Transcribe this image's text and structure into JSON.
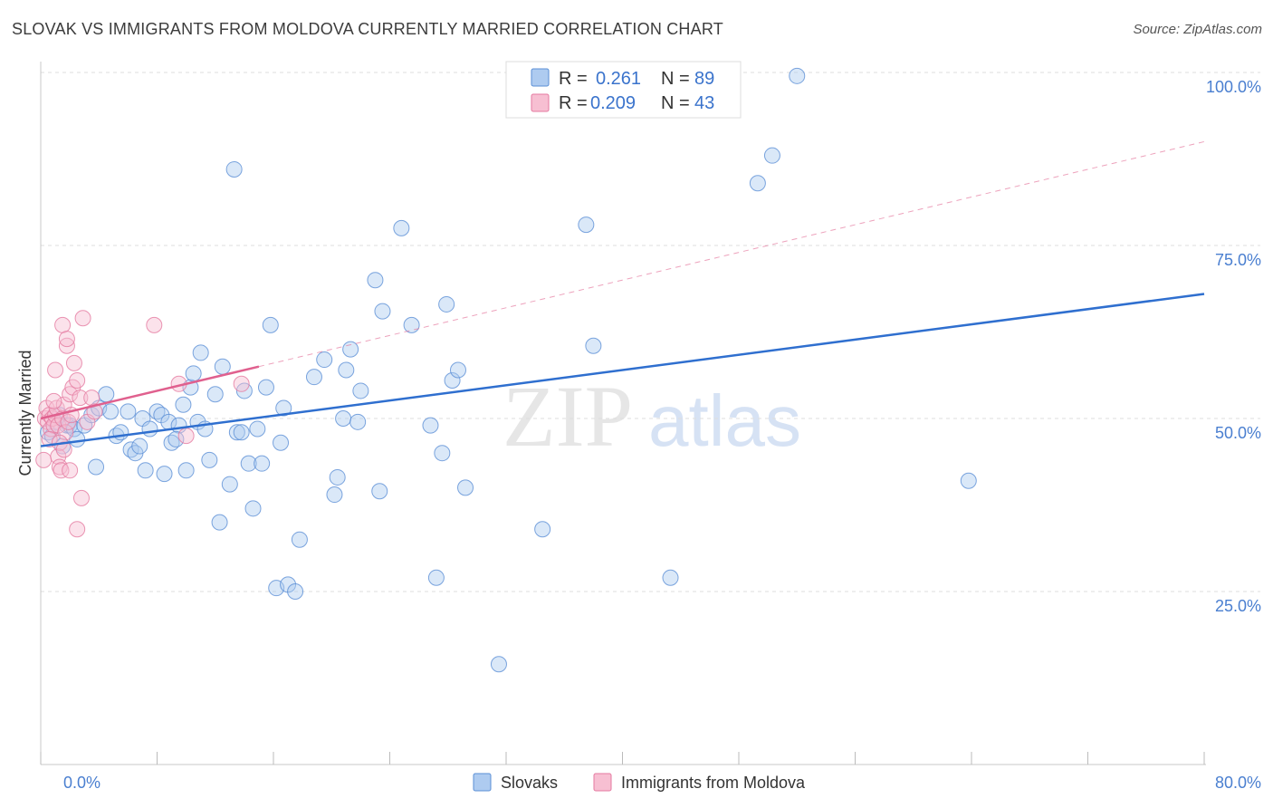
{
  "title": "SLOVAK VS IMMIGRANTS FROM MOLDOVA CURRENTLY MARRIED CORRELATION CHART",
  "source": "Source: ZipAtlas.com",
  "watermark": {
    "zip": "ZIP",
    "atlas": "atlas"
  },
  "colors": {
    "slovak": "#5b8fd6",
    "slovak_fill": "#aecbf0",
    "moldova": "#e57aa0",
    "moldova_fill": "#f7bfd2",
    "axis_text": "#4a7fd0"
  },
  "legend": {
    "rows": [
      {
        "r_label": "R =",
        "r_value": "0.261",
        "n_label": "N =",
        "n_value": "89"
      },
      {
        "r_label": "R =",
        "r_value": "0.209",
        "n_label": "N =",
        "n_value": "43"
      }
    ]
  },
  "bottom_legend": {
    "series1": "Slovaks",
    "series2": "Immigrants from Moldova"
  },
  "chart_data": {
    "type": "scatter",
    "title": "SLOVAK VS IMMIGRANTS FROM MOLDOVA CURRENTLY MARRIED CORRELATION CHART",
    "xlabel": "",
    "ylabel": "Currently Married",
    "xlim": [
      0,
      80
    ],
    "ylim": [
      0,
      100
    ],
    "x_tick_labels": [
      "0.0%",
      "80.0%"
    ],
    "y_tick_values": [
      25,
      50,
      75,
      100
    ],
    "y_tick_labels": [
      "25.0%",
      "50.0%",
      "75.0%",
      "100.0%"
    ],
    "grid": true,
    "legend_position": "top-center",
    "series": [
      {
        "name": "Slovaks",
        "r": 0.261,
        "n": 89,
        "trend": {
          "x": [
            0,
            80
          ],
          "y": [
            46.0,
            68.0
          ]
        },
        "points": [
          [
            0.5,
            48.0
          ],
          [
            0.8,
            47.5
          ],
          [
            1.0,
            49.5
          ],
          [
            1.3,
            50.5
          ],
          [
            1.5,
            46.0
          ],
          [
            1.8,
            49.0
          ],
          [
            2.0,
            49.0
          ],
          [
            2.3,
            48.5
          ],
          [
            2.5,
            47.0
          ],
          [
            3.0,
            49.0
          ],
          [
            3.5,
            50.5
          ],
          [
            4.0,
            51.5
          ],
          [
            4.5,
            53.5
          ],
          [
            4.8,
            51.0
          ],
          [
            5.2,
            47.5
          ],
          [
            5.5,
            48.0
          ],
          [
            6.0,
            51.0
          ],
          [
            6.2,
            45.5
          ],
          [
            6.5,
            45.0
          ],
          [
            6.8,
            46.0
          ],
          [
            7.0,
            50.0
          ],
          [
            7.2,
            42.5
          ],
          [
            7.5,
            48.5
          ],
          [
            8.0,
            51.0
          ],
          [
            8.3,
            50.5
          ],
          [
            8.5,
            42.0
          ],
          [
            8.8,
            49.5
          ],
          [
            9.0,
            46.5
          ],
          [
            9.5,
            49.0
          ],
          [
            9.8,
            52.0
          ],
          [
            10.0,
            42.5
          ],
          [
            10.3,
            54.5
          ],
          [
            10.5,
            56.5
          ],
          [
            10.8,
            49.5
          ],
          [
            11.0,
            59.5
          ],
          [
            11.3,
            48.5
          ],
          [
            11.6,
            44.0
          ],
          [
            12.0,
            53.5
          ],
          [
            12.3,
            35.0
          ],
          [
            12.5,
            57.5
          ],
          [
            13.0,
            40.5
          ],
          [
            13.3,
            86.0
          ],
          [
            13.5,
            48.0
          ],
          [
            13.8,
            48.0
          ],
          [
            14.0,
            54.0
          ],
          [
            14.3,
            43.5
          ],
          [
            14.6,
            37.0
          ],
          [
            14.9,
            48.5
          ],
          [
            15.2,
            43.5
          ],
          [
            15.5,
            54.5
          ],
          [
            15.8,
            63.5
          ],
          [
            16.2,
            25.5
          ],
          [
            16.5,
            46.5
          ],
          [
            16.7,
            51.5
          ],
          [
            17.0,
            26.0
          ],
          [
            17.5,
            25.0
          ],
          [
            17.8,
            32.5
          ],
          [
            19.5,
            58.5
          ],
          [
            20.2,
            39.0
          ],
          [
            20.4,
            41.5
          ],
          [
            20.8,
            50.0
          ],
          [
            21.0,
            57.0
          ],
          [
            21.3,
            60.0
          ],
          [
            21.8,
            49.5
          ],
          [
            22.0,
            54.0
          ],
          [
            23.0,
            70.0
          ],
          [
            23.3,
            39.5
          ],
          [
            23.5,
            65.5
          ],
          [
            24.8,
            77.5
          ],
          [
            25.5,
            63.5
          ],
          [
            26.8,
            49.0
          ],
          [
            27.2,
            27.0
          ],
          [
            27.6,
            45.0
          ],
          [
            27.9,
            66.5
          ],
          [
            28.3,
            55.5
          ],
          [
            28.7,
            57.0
          ],
          [
            29.2,
            40.0
          ],
          [
            31.5,
            14.5
          ],
          [
            34.5,
            34.0
          ],
          [
            37.5,
            78.0
          ],
          [
            38.0,
            60.5
          ],
          [
            43.3,
            27.0
          ],
          [
            49.3,
            84.0
          ],
          [
            50.3,
            88.0
          ],
          [
            52.0,
            99.5
          ],
          [
            63.8,
            41.0
          ],
          [
            3.8,
            43.0
          ],
          [
            9.3,
            47.0
          ],
          [
            18.8,
            56.0
          ]
        ]
      },
      {
        "name": "Immigrants from Moldova",
        "r": 0.209,
        "n": 43,
        "trend": {
          "x": [
            0,
            15
          ],
          "y": [
            50.0,
            57.5
          ]
        },
        "points": [
          [
            0.2,
            44.0
          ],
          [
            0.3,
            50.0
          ],
          [
            0.4,
            51.5
          ],
          [
            0.5,
            49.5
          ],
          [
            0.6,
            50.5
          ],
          [
            0.7,
            48.5
          ],
          [
            0.8,
            50.0
          ],
          [
            0.9,
            49.0
          ],
          [
            1.0,
            50.5
          ],
          [
            1.0,
            57.0
          ],
          [
            1.1,
            51.5
          ],
          [
            1.2,
            44.5
          ],
          [
            1.2,
            49.0
          ],
          [
            1.3,
            43.0
          ],
          [
            1.4,
            42.5
          ],
          [
            1.5,
            63.5
          ],
          [
            1.5,
            50.0
          ],
          [
            1.6,
            52.0
          ],
          [
            1.7,
            48.0
          ],
          [
            1.8,
            60.5
          ],
          [
            1.8,
            61.5
          ],
          [
            1.9,
            49.5
          ],
          [
            2.0,
            42.5
          ],
          [
            2.0,
            53.5
          ],
          [
            2.2,
            54.5
          ],
          [
            2.3,
            58.0
          ],
          [
            2.5,
            34.0
          ],
          [
            2.5,
            55.5
          ],
          [
            2.7,
            53.0
          ],
          [
            2.8,
            38.5
          ],
          [
            2.9,
            64.5
          ],
          [
            3.2,
            49.5
          ],
          [
            3.5,
            53.0
          ],
          [
            3.7,
            51.0
          ],
          [
            7.8,
            63.5
          ],
          [
            9.5,
            55.0
          ],
          [
            10.0,
            47.5
          ],
          [
            13.8,
            55.0
          ],
          [
            0.6,
            47.0
          ],
          [
            1.3,
            46.5
          ],
          [
            2.1,
            50.5
          ],
          [
            0.9,
            52.5
          ],
          [
            1.6,
            45.5
          ]
        ]
      }
    ]
  }
}
